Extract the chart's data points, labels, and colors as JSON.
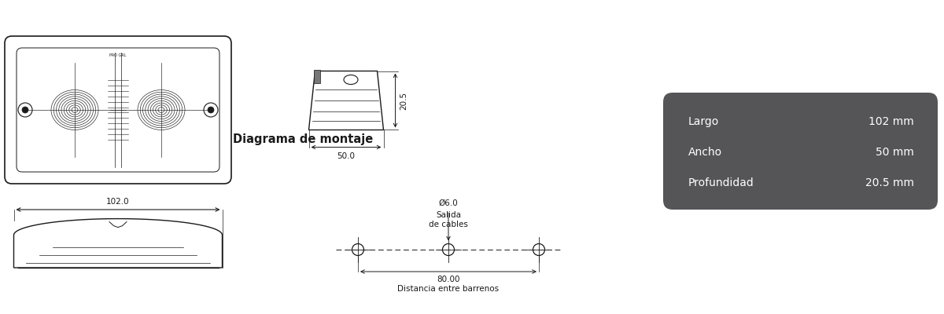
{
  "bg_color": "#ffffff",
  "line_color": "#1a1a1a",
  "gray_box_color": "#555558",
  "title": "Diagrama de montaje",
  "title_fontsize": 10.5,
  "specs": {
    "largo_label": "Largo",
    "largo_value": "102 mm",
    "ancho_label": "Ancho",
    "ancho_value": "50 mm",
    "prof_label": "Profundidad",
    "prof_value": "20.5 mm"
  },
  "dim_102": "102.0",
  "dim_50": "50.0",
  "dim_20_5": "20.5",
  "dim_80": "80.00",
  "dim_dist": "Distancia entre barrenos",
  "dim_hole": "Ø6.0",
  "dim_hole2": "Salida",
  "dim_hole3": "de cables",
  "spec_fontsize": 10,
  "dim_fontsize": 7.5
}
